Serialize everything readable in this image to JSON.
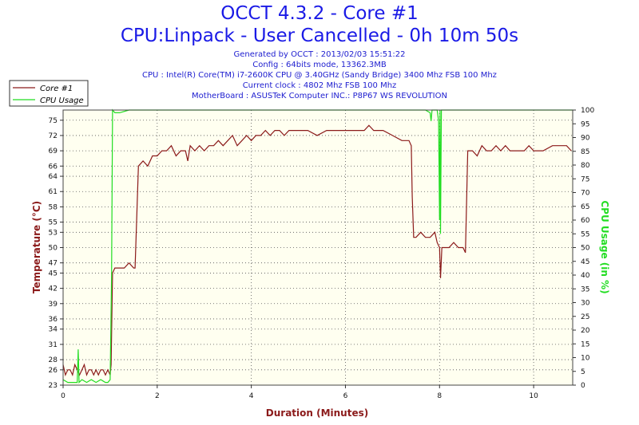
{
  "header": {
    "title": "OCCT 4.3.2 - Core #1",
    "subtitle": "CPU:Linpack - User Cancelled - 0h 10m 50s",
    "info_lines": [
      "Generated by OCCT : 2013/02/03 15:51:22",
      "Config : 64bits mode, 13362.3MB",
      "CPU : Intel(R) Core(TM) i7-2600K CPU @ 3.40GHz (Sandy Bridge) 3400 Mhz FSB 100 Mhz",
      "Current clock : 4802 Mhz FSB 100 Mhz",
      "MotherBoard : ASUSTeK Computer INC.: P8P67 WS REVOLUTION"
    ]
  },
  "colors": {
    "temp": "#8b1a1a",
    "usage": "#22dd22",
    "plot_bg": "#fffff0",
    "grid": "#555555",
    "frame": "#444444"
  },
  "chart_data": {
    "type": "line",
    "xlabel": "Duration (Minutes)",
    "ylabel": "Temperature (°C)",
    "y2label": "CPU Usage (in %)",
    "xlim": [
      0,
      10.83
    ],
    "ylim": [
      23,
      77
    ],
    "y2lim": [
      0,
      100
    ],
    "x_ticks": [
      "0",
      "2",
      "4",
      "6",
      "8",
      "10"
    ],
    "y_ticks": [
      "23",
      "26",
      "28",
      "31",
      "34",
      "36",
      "39",
      "42",
      "45",
      "47",
      "50",
      "53",
      "55",
      "58",
      "61",
      "64",
      "66",
      "69",
      "72",
      "75"
    ],
    "y2_ticks": [
      "0",
      "5",
      "10",
      "15",
      "20",
      "25",
      "30",
      "35",
      "40",
      "45",
      "50",
      "55",
      "60",
      "65",
      "70",
      "75",
      "80",
      "85",
      "90",
      "95",
      "100"
    ],
    "legend": {
      "position": "top-left",
      "entries": [
        "Core #1",
        "CPU Usage"
      ]
    },
    "series": [
      {
        "name": "Core #1",
        "axis": "left",
        "x": [
          0,
          0.05,
          0.1,
          0.15,
          0.2,
          0.25,
          0.3,
          0.35,
          0.4,
          0.45,
          0.5,
          0.55,
          0.6,
          0.65,
          0.7,
          0.75,
          0.8,
          0.85,
          0.9,
          0.95,
          1.0,
          1.02,
          1.05,
          1.1,
          1.2,
          1.3,
          1.4,
          1.5,
          1.53,
          1.6,
          1.7,
          1.8,
          1.9,
          2.0,
          2.1,
          2.2,
          2.3,
          2.4,
          2.5,
          2.6,
          2.65,
          2.7,
          2.8,
          2.9,
          3.0,
          3.1,
          3.2,
          3.3,
          3.4,
          3.5,
          3.6,
          3.7,
          3.8,
          3.9,
          4.0,
          4.1,
          4.2,
          4.3,
          4.4,
          4.5,
          4.6,
          4.7,
          4.8,
          4.9,
          5.0,
          5.2,
          5.4,
          5.6,
          5.8,
          6.0,
          6.2,
          6.4,
          6.5,
          6.6,
          6.8,
          7.0,
          7.2,
          7.3,
          7.35,
          7.4,
          7.42,
          7.45,
          7.5,
          7.6,
          7.7,
          7.8,
          7.9,
          7.95,
          8.0,
          8.02,
          8.05,
          8.1,
          8.2,
          8.3,
          8.4,
          8.5,
          8.55,
          8.6,
          8.7,
          8.8,
          8.9,
          9.0,
          9.1,
          9.2,
          9.3,
          9.4,
          9.5,
          9.6,
          9.7,
          9.8,
          9.9,
          10.0,
          10.2,
          10.4,
          10.6,
          10.7,
          10.8
        ],
        "values": [
          27,
          25,
          26,
          26,
          25,
          27,
          26,
          25,
          26,
          27,
          25,
          26,
          26,
          25,
          26,
          25,
          26,
          26,
          25,
          26,
          25,
          27,
          45,
          46,
          46,
          46,
          47,
          46,
          46,
          66,
          67,
          66,
          68,
          68,
          69,
          69,
          70,
          68,
          69,
          69,
          67,
          70,
          69,
          70,
          69,
          70,
          70,
          71,
          70,
          71,
          72,
          70,
          71,
          72,
          71,
          72,
          72,
          73,
          72,
          73,
          73,
          72,
          73,
          73,
          73,
          73,
          72,
          73,
          73,
          73,
          73,
          73,
          74,
          73,
          73,
          72,
          71,
          71,
          71,
          70,
          60,
          52,
          52,
          53,
          52,
          52,
          53,
          51,
          50,
          44,
          50,
          50,
          50,
          51,
          50,
          50,
          49,
          69,
          69,
          68,
          70,
          69,
          69,
          70,
          69,
          70,
          69,
          69,
          69,
          69,
          70,
          69,
          69,
          70,
          70,
          70,
          69
        ]
      },
      {
        "name": "CPU Usage",
        "axis": "right",
        "x": [
          0,
          0.1,
          0.2,
          0.3,
          0.32,
          0.34,
          0.4,
          0.5,
          0.6,
          0.7,
          0.8,
          0.9,
          0.95,
          1.0,
          1.03,
          1.05,
          1.1,
          1.2,
          1.4,
          2.0,
          3.0,
          4.0,
          5.0,
          6.0,
          7.0,
          7.5,
          7.7,
          7.8,
          7.82,
          7.84,
          7.9,
          7.95,
          7.98,
          8.0,
          8.01,
          8.02,
          8.04,
          8.06,
          8.1,
          8.3,
          9.0,
          10.0,
          10.83
        ],
        "values": [
          2,
          1,
          1,
          1,
          13,
          1,
          2,
          1,
          2,
          1,
          2,
          1,
          1,
          2,
          40,
          100,
          99,
          99,
          100,
          100,
          100,
          100,
          100,
          100,
          100,
          100,
          100,
          99,
          96,
          100,
          100,
          100,
          96,
          60,
          100,
          55,
          100,
          100,
          100,
          100,
          100,
          100,
          100
        ]
      }
    ]
  }
}
